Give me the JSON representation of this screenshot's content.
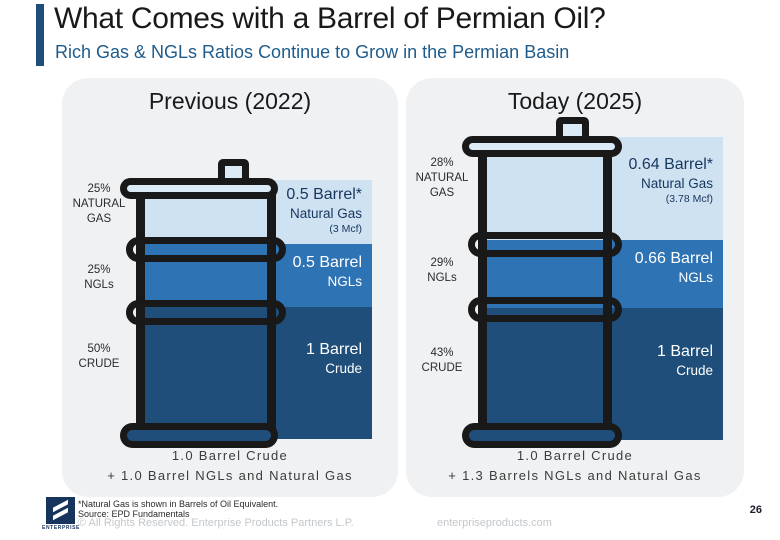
{
  "header": {
    "title": "What Comes with a Barrel of Permian Oil?",
    "subtitle": "Rich Gas & NGLs Ratios Continue to Grow in the Permian Basin"
  },
  "panels": [
    {
      "title": "Previous (2022)",
      "segments": [
        {
          "pct": "25%",
          "name1": "NATURAL",
          "name2": "GAS",
          "value": "0.5 Barrel*",
          "label": "Natural Gas",
          "note": "(3 Mcf)"
        },
        {
          "pct": "25%",
          "name1": "NGLs",
          "name2": "",
          "value": "0.5 Barrel",
          "label": "NGLs",
          "note": ""
        },
        {
          "pct": "50%",
          "name1": "CRUDE",
          "name2": "",
          "value": "1 Barrel",
          "label": "Crude",
          "note": ""
        }
      ],
      "summary1": "1.0 Barrel Crude",
      "summary2": "+ 1.0 Barrel NGLs and Natural Gas"
    },
    {
      "title": "Today (2025)",
      "segments": [
        {
          "pct": "28%",
          "name1": "NATURAL",
          "name2": "GAS",
          "value": "0.64 Barrel*",
          "label": "Natural Gas",
          "note": "(3.78 Mcf)"
        },
        {
          "pct": "29%",
          "name1": "NGLs",
          "name2": "",
          "value": "0.66 Barrel",
          "label": "NGLs",
          "note": ""
        },
        {
          "pct": "43%",
          "name1": "CRUDE",
          "name2": "",
          "value": "1 Barrel",
          "label": "Crude",
          "note": ""
        }
      ],
      "summary1": "1.0 Barrel Crude",
      "summary2": "+ 1.3 Barrels NGLs and Natural Gas"
    }
  ],
  "footer": {
    "logo_text": "ENTERPRISE",
    "footnote1": "*Natural Gas is shown in Barrels of Oil Equivalent.",
    "footnote2": "Source:  EPD Fundamentals",
    "copyright": "© All Rights Reserved. Enterprise Products Partners L.P.",
    "website": "enterpriseproducts.com",
    "page_number": "26"
  },
  "colors": {
    "natural_gas_band": "#cfe2f2",
    "ngls_band": "#2e74b5",
    "crude_band": "#1e4e79",
    "accent_bar": "#1f4e79",
    "subtitle_text": "#1f5c8c"
  },
  "chart_data": {
    "type": "bar",
    "title": "What Comes with a Barrel of Permian Oil?",
    "subtitle": "Rich Gas & NGLs Ratios Continue to Grow in the Permian Basin",
    "categories": [
      "Previous (2022)",
      "Today (2025)"
    ],
    "series": [
      {
        "name": "Natural Gas (Barrels of Oil Equivalent)",
        "values": [
          0.5,
          0.64
        ],
        "share_pct": [
          25,
          28
        ],
        "notes": [
          "3 Mcf",
          "3.78 Mcf"
        ]
      },
      {
        "name": "NGLs",
        "values": [
          0.5,
          0.66
        ],
        "share_pct": [
          25,
          29
        ]
      },
      {
        "name": "Crude",
        "values": [
          1.0,
          1.0
        ],
        "share_pct": [
          50,
          43
        ]
      }
    ],
    "totals": [
      "1.0 Barrel Crude + 1.0 Barrel NGLs and Natural Gas",
      "1.0 Barrel Crude + 1.3 Barrels NGLs and Natural Gas"
    ],
    "legend_position": "none",
    "grid": false
  }
}
